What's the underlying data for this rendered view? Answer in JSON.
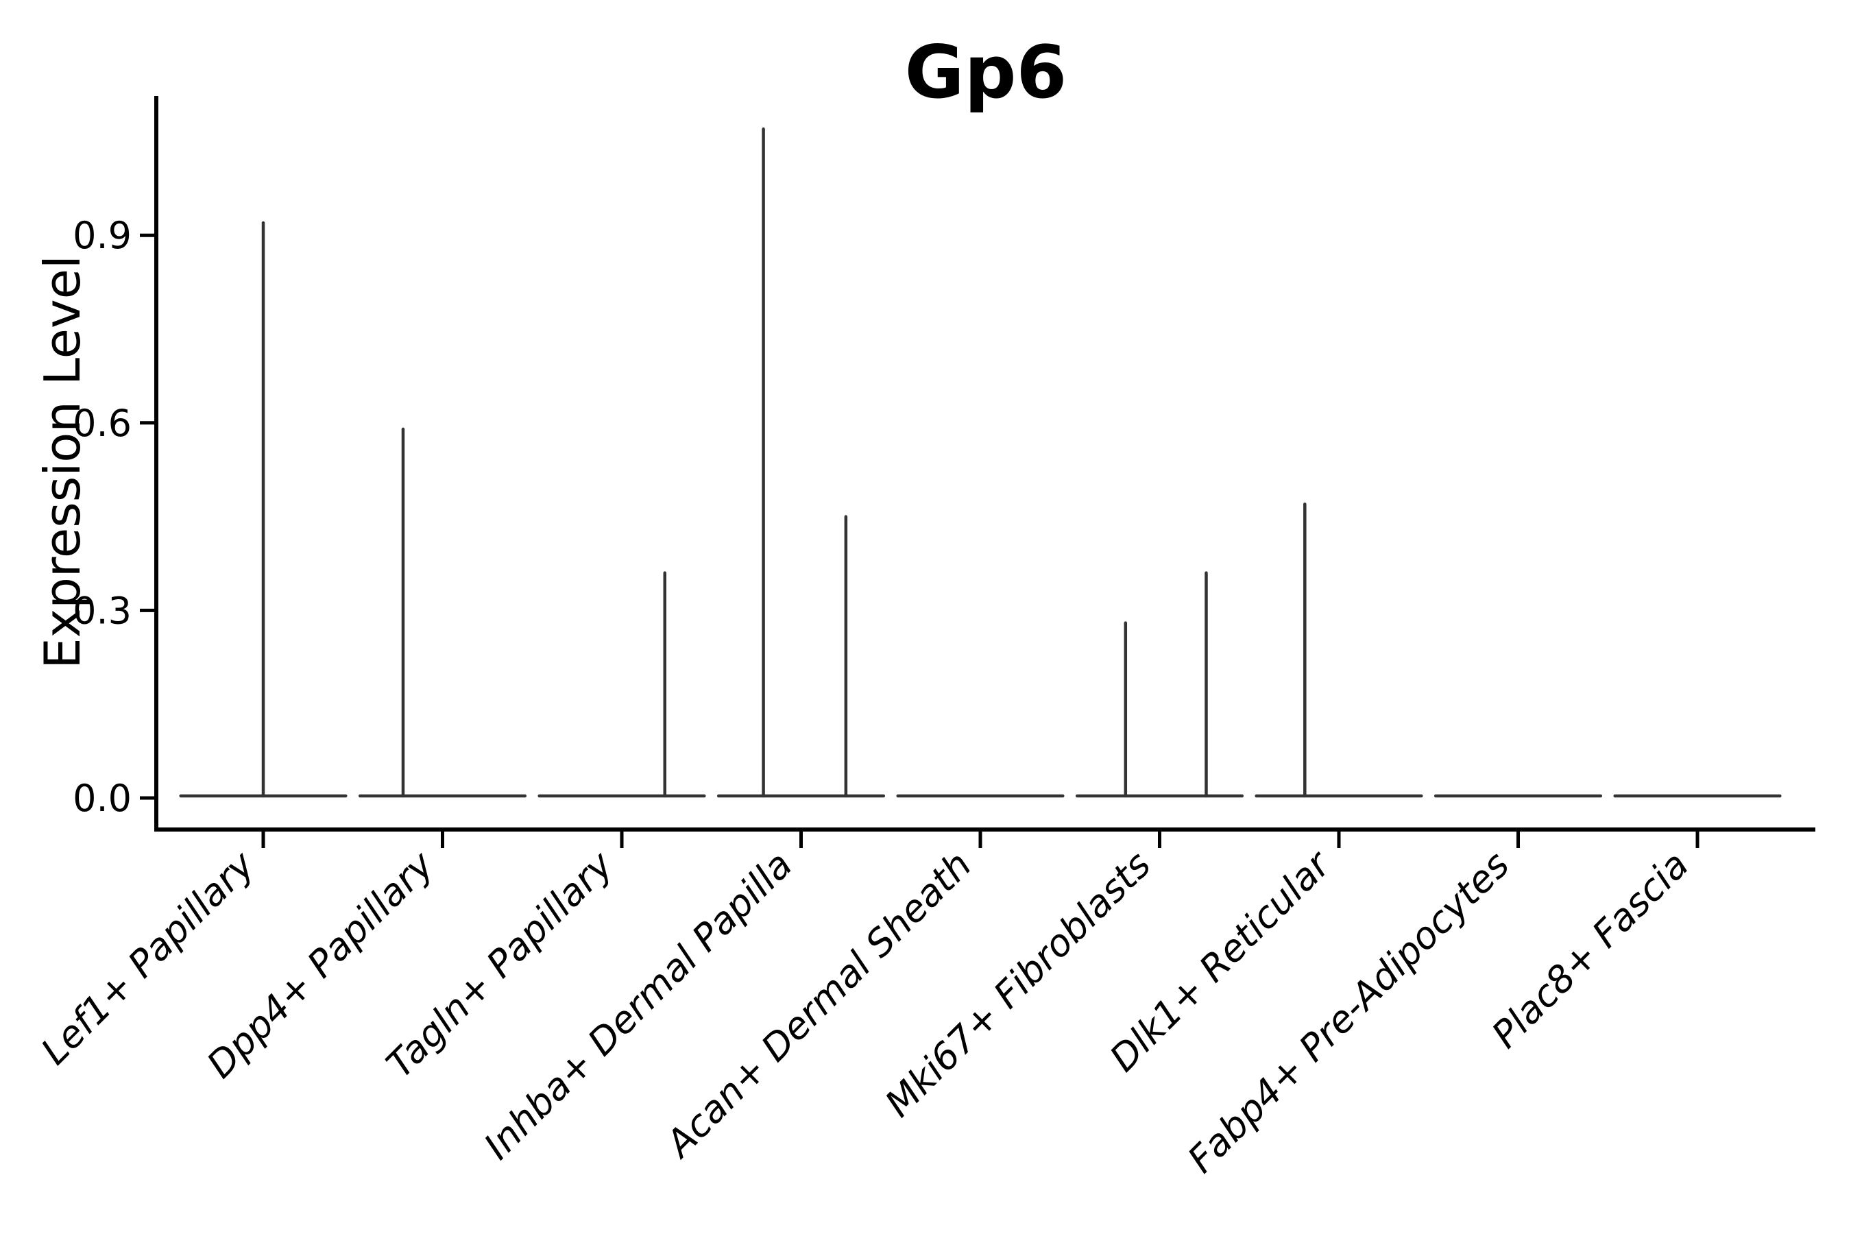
{
  "figure": {
    "title": "Gp6"
  },
  "chart_data": {
    "type": "violin",
    "title": "Gp6",
    "xlabel": "",
    "ylabel": "Expression Level",
    "ytick_labels": [
      "0.0",
      "0.3",
      "0.6",
      "0.9"
    ],
    "ytick_values": [
      0.0,
      0.3,
      0.6,
      0.9
    ],
    "ylim": [
      -0.05,
      1.12
    ],
    "grid": false,
    "legend_position": "none",
    "categories": [
      "Lef1+ Papillary",
      "Dpp4+ Papillary",
      "Tagln+ Papillary",
      "Inhba+ Dermal Papilla",
      "Acan+ Dermal Sheath",
      "Mki67+ Fibroblasts",
      "Dlk1+ Reticular",
      "Fabp4+ Pre-Adipocytes",
      "Plac8+ Fascia"
    ],
    "series": [
      {
        "name": "Lef1+ Papillary",
        "body_at_zero": true,
        "max_expression": 0.92,
        "spikes": [
          {
            "offset_frac": 0.0,
            "value": 0.92
          }
        ]
      },
      {
        "name": "Dpp4+ Papillary",
        "body_at_zero": true,
        "max_expression": 0.59,
        "spikes": [
          {
            "offset_frac": -0.22,
            "value": 0.59
          }
        ]
      },
      {
        "name": "Tagln+ Papillary",
        "body_at_zero": true,
        "max_expression": 0.36,
        "spikes": [
          {
            "offset_frac": 0.24,
            "value": 0.36
          }
        ]
      },
      {
        "name": "Inhba+ Dermal Papilla",
        "body_at_zero": true,
        "max_expression": 1.07,
        "spikes": [
          {
            "offset_frac": -0.21,
            "value": 1.07
          },
          {
            "offset_frac": 0.25,
            "value": 0.45
          }
        ]
      },
      {
        "name": "Acan+ Dermal Sheath",
        "body_at_zero": true,
        "max_expression": 0.0,
        "spikes": []
      },
      {
        "name": "Mki67+ Fibroblasts",
        "body_at_zero": true,
        "max_expression": 0.36,
        "spikes": [
          {
            "offset_frac": -0.19,
            "value": 0.28
          },
          {
            "offset_frac": 0.26,
            "value": 0.36
          }
        ]
      },
      {
        "name": "Dlk1+ Reticular",
        "body_at_zero": true,
        "max_expression": 0.47,
        "spikes": [
          {
            "offset_frac": -0.19,
            "value": 0.47
          }
        ]
      },
      {
        "name": "Fabp4+ Pre-Adipocytes",
        "body_at_zero": true,
        "max_expression": 0.0,
        "spikes": []
      },
      {
        "name": "Plac8+ Fascia",
        "body_at_zero": true,
        "max_expression": 0.0,
        "spikes": []
      }
    ],
    "style": {
      "violin_line_color": "#333333",
      "axis_color": "#000000",
      "background_color": "#ffffff",
      "base_halfwidth_frac": 0.46,
      "x_label_rotation_deg": 45,
      "x_label_style": "italic"
    }
  }
}
